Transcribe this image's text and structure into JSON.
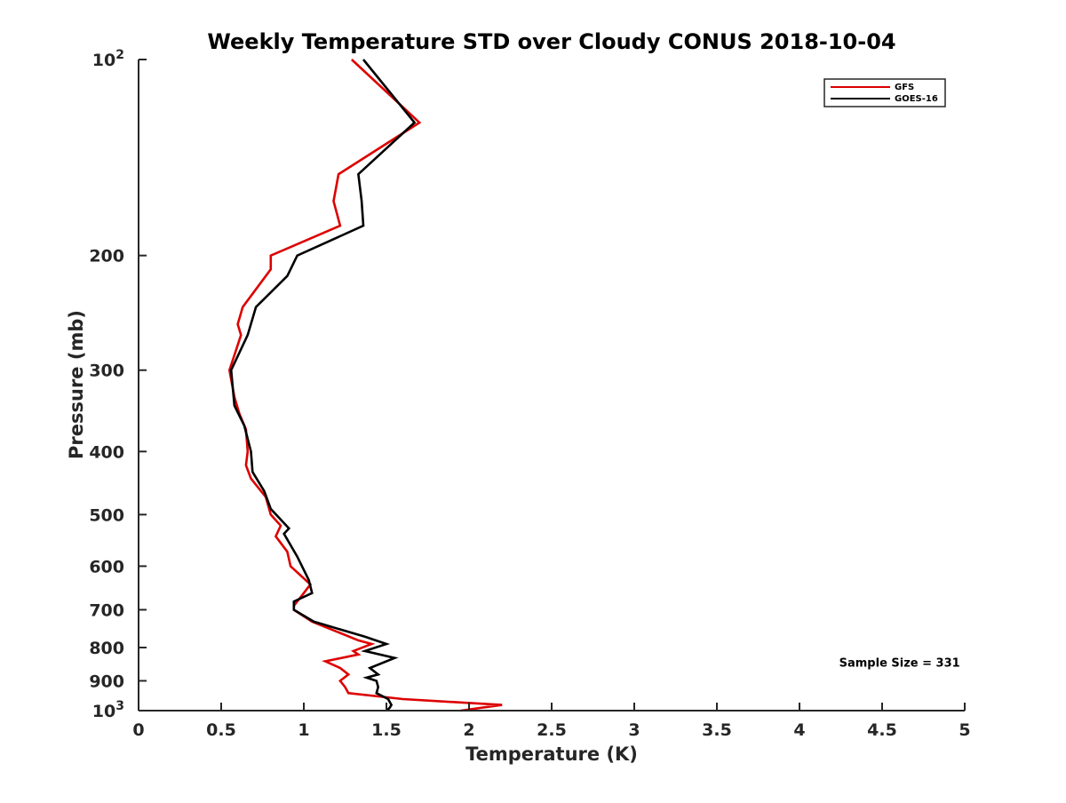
{
  "chart_data": {
    "type": "line",
    "title": "Weekly Temperature STD over Cloudy CONUS 2018-10-04",
    "xlabel": "Temperature (K)",
    "ylabel": "Pressure (mb)",
    "xlim": [
      0,
      5
    ],
    "ylim": [
      100,
      1000
    ],
    "y_scale": "log",
    "y_reversed": true,
    "grid": false,
    "legend_position": "top-right",
    "x_ticks": [
      0,
      0.5,
      1,
      1.5,
      2,
      2.5,
      3,
      3.5,
      4,
      4.5,
      5
    ],
    "x_tick_labels": [
      "0",
      "0.5",
      "1",
      "1.5",
      "2",
      "2.5",
      "3",
      "3.5",
      "4",
      "4.5",
      "5"
    ],
    "y_ticks": [
      {
        "value": 100,
        "label": "10",
        "sup": "2"
      },
      {
        "value": 200,
        "label": "200"
      },
      {
        "value": 300,
        "label": "300"
      },
      {
        "value": 400,
        "label": "400"
      },
      {
        "value": 500,
        "label": "500"
      },
      {
        "value": 600,
        "label": "600"
      },
      {
        "value": 700,
        "label": "700"
      },
      {
        "value": 800,
        "label": "800"
      },
      {
        "value": 900,
        "label": "900"
      },
      {
        "value": 1000,
        "label": "10",
        "sup": "3"
      }
    ],
    "series": [
      {
        "name": "GFS",
        "color": "#dd0000",
        "points": [
          [
            1.29,
            100
          ],
          [
            1.7,
            125
          ],
          [
            1.21,
            150
          ],
          [
            1.18,
            165
          ],
          [
            1.22,
            180
          ],
          [
            0.8,
            200
          ],
          [
            0.8,
            210
          ],
          [
            0.63,
            240
          ],
          [
            0.6,
            255
          ],
          [
            0.62,
            265
          ],
          [
            0.55,
            300
          ],
          [
            0.58,
            330
          ],
          [
            0.61,
            350
          ],
          [
            0.65,
            370
          ],
          [
            0.66,
            400
          ],
          [
            0.65,
            420
          ],
          [
            0.68,
            440
          ],
          [
            0.77,
            470
          ],
          [
            0.8,
            500
          ],
          [
            0.86,
            520
          ],
          [
            0.83,
            540
          ],
          [
            0.9,
            570
          ],
          [
            0.92,
            600
          ],
          [
            1.04,
            640
          ],
          [
            1.0,
            660
          ],
          [
            0.94,
            690
          ],
          [
            0.94,
            700
          ],
          [
            1.05,
            730
          ],
          [
            1.33,
            780
          ],
          [
            1.41,
            790
          ],
          [
            1.3,
            810
          ],
          [
            1.33,
            820
          ],
          [
            1.13,
            840
          ],
          [
            1.22,
            860
          ],
          [
            1.27,
            880
          ],
          [
            1.22,
            900
          ],
          [
            1.25,
            920
          ],
          [
            1.27,
            940
          ],
          [
            1.6,
            960
          ],
          [
            2.2,
            980
          ],
          [
            1.95,
            1000
          ]
        ]
      },
      {
        "name": "GOES-16",
        "color": "#000000",
        "points": [
          [
            1.36,
            100
          ],
          [
            1.67,
            125
          ],
          [
            1.33,
            150
          ],
          [
            1.35,
            165
          ],
          [
            1.36,
            180
          ],
          [
            0.96,
            200
          ],
          [
            0.9,
            215
          ],
          [
            0.71,
            240
          ],
          [
            0.66,
            265
          ],
          [
            0.56,
            300
          ],
          [
            0.58,
            340
          ],
          [
            0.64,
            365
          ],
          [
            0.68,
            400
          ],
          [
            0.69,
            430
          ],
          [
            0.76,
            460
          ],
          [
            0.8,
            490
          ],
          [
            0.91,
            525
          ],
          [
            0.88,
            535
          ],
          [
            0.96,
            580
          ],
          [
            1.03,
            630
          ],
          [
            1.05,
            660
          ],
          [
            0.94,
            680
          ],
          [
            0.94,
            700
          ],
          [
            1.06,
            730
          ],
          [
            1.37,
            770
          ],
          [
            1.5,
            790
          ],
          [
            1.37,
            810
          ],
          [
            1.55,
            830
          ],
          [
            1.4,
            860
          ],
          [
            1.45,
            880
          ],
          [
            1.38,
            890
          ],
          [
            1.44,
            900
          ],
          [
            1.45,
            920
          ],
          [
            1.44,
            940
          ],
          [
            1.51,
            960
          ],
          [
            1.53,
            980
          ],
          [
            1.52,
            990
          ],
          [
            1.5,
            1000
          ]
        ]
      }
    ],
    "annotations": [
      {
        "text": "Sample Size = 331",
        "x": 4.24,
        "y": 880
      }
    ]
  }
}
